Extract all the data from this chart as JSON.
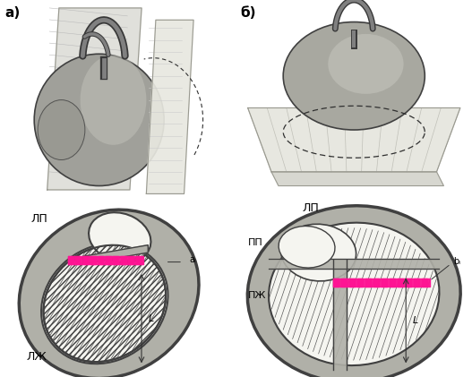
{
  "background_color": "#ffffff",
  "panel_a_label": "а)",
  "panel_b_label": "б)",
  "label_a_annotation": "aᵢ",
  "label_b_annotation": "bᵢ",
  "label_LP": "ЛП",
  "label_LZH": "ЛЖ",
  "label_PP": "ПП",
  "label_PZH": "ПЖ",
  "label_L": "L",
  "wall_color": "#c8c8c0",
  "wall_edge": "#404040",
  "inner_fill": "#f5f5f0",
  "pink_color": "#ff1493",
  "text_color": "#000000",
  "font_size_label": 9,
  "font_size_annot": 7,
  "font_size_panel": 11,
  "gray_light": "#d8d8d0",
  "gray_mid": "#b0b0a8",
  "gray_dark": "#888880"
}
